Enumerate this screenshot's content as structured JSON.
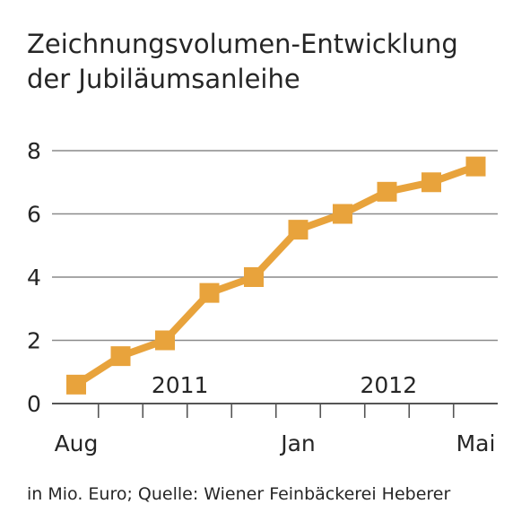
{
  "title_lines": [
    "Zeichnungsvolumen-Entwicklung",
    "der Jubiläumsanleihe"
  ],
  "footer": "in Mio. Euro; Quelle: Wiener Feinbäckerei Heberer",
  "colors": {
    "line": "#e8a33c",
    "grid": "#8a8a8a",
    "axis": "#555555",
    "text": "#262626"
  },
  "chart_data": {
    "type": "line",
    "title": "Zeichnungsvolumen-Entwicklung der Jubiläumsanleihe",
    "ylabel": "",
    "xlabel": "",
    "ylim": [
      0,
      8
    ],
    "yticks": [
      0,
      2,
      4,
      6,
      8
    ],
    "grid": true,
    "x_month_labels": [
      {
        "label": "Aug",
        "index": 0
      },
      {
        "label": "Jan",
        "index": 5
      },
      {
        "label": "Mai",
        "index": 9
      }
    ],
    "year_labels": [
      {
        "label": "2011",
        "index": 2.3
      },
      {
        "label": "2012",
        "index": 7.0
      }
    ],
    "series": [
      {
        "points": [
          {
            "x": 0.0,
            "y": 0.6
          },
          {
            "x": 1.0,
            "y": 1.5
          },
          {
            "x": 2.0,
            "y": 2.0
          },
          {
            "x": 3.0,
            "y": 3.5
          },
          {
            "x": 4.0,
            "y": 4.0
          },
          {
            "x": 5.0,
            "y": 5.5
          },
          {
            "x": 6.0,
            "y": 6.0
          },
          {
            "x": 7.0,
            "y": 6.7
          },
          {
            "x": 8.0,
            "y": 7.0
          },
          {
            "x": 9.0,
            "y": 7.5
          }
        ]
      }
    ]
  }
}
